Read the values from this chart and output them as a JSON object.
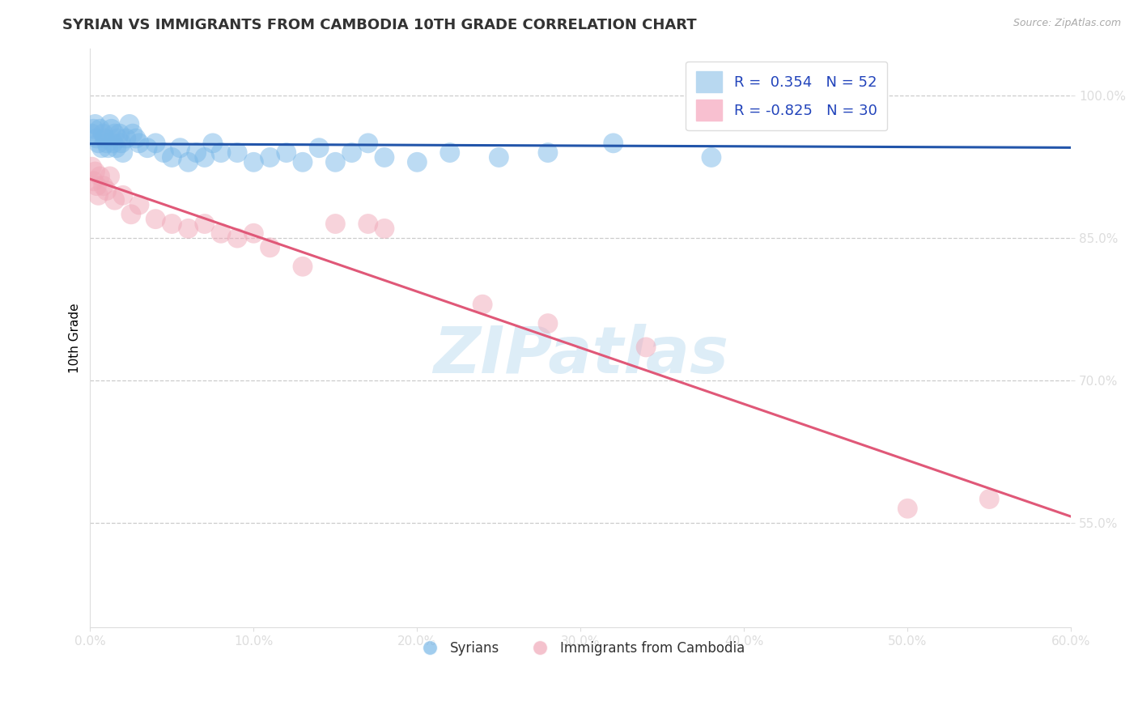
{
  "title": "SYRIAN VS IMMIGRANTS FROM CAMBODIA 10TH GRADE CORRELATION CHART",
  "source": "Source: ZipAtlas.com",
  "xlabel_vals": [
    0.0,
    10.0,
    20.0,
    30.0,
    40.0,
    50.0,
    60.0
  ],
  "ylabel": "10th Grade",
  "ylabel_vals": [
    55.0,
    70.0,
    85.0,
    100.0
  ],
  "xmin": 0.0,
  "xmax": 60.0,
  "ymin": 44.0,
  "ymax": 105.0,
  "blue_R": 0.354,
  "blue_N": 52,
  "pink_R": -0.825,
  "pink_N": 30,
  "blue_color": "#7ab8e8",
  "pink_color": "#f0a8b8",
  "blue_line_color": "#2255aa",
  "pink_line_color": "#e05878",
  "legend_label_blue": "Syrians",
  "legend_label_pink": "Immigrants from Cambodia",
  "blue_scatter_x": [
    0.1,
    0.2,
    0.3,
    0.4,
    0.5,
    0.6,
    0.7,
    0.8,
    0.9,
    1.0,
    1.1,
    1.2,
    1.3,
    1.4,
    1.5,
    1.6,
    1.7,
    1.8,
    1.9,
    2.0,
    2.2,
    2.4,
    2.6,
    2.8,
    3.0,
    3.5,
    4.0,
    4.5,
    5.0,
    5.5,
    6.0,
    6.5,
    7.0,
    7.5,
    8.0,
    9.0,
    10.0,
    11.0,
    12.0,
    13.0,
    14.0,
    15.0,
    16.0,
    17.0,
    18.0,
    20.0,
    22.0,
    25.0,
    28.0,
    32.0,
    38.0,
    45.0
  ],
  "blue_scatter_y": [
    96.0,
    96.5,
    97.0,
    95.5,
    95.0,
    96.5,
    94.5,
    96.0,
    95.5,
    95.0,
    94.5,
    97.0,
    96.5,
    95.0,
    96.0,
    94.5,
    95.5,
    96.0,
    95.0,
    94.0,
    95.5,
    97.0,
    96.0,
    95.5,
    95.0,
    94.5,
    95.0,
    94.0,
    93.5,
    94.5,
    93.0,
    94.0,
    93.5,
    95.0,
    94.0,
    94.0,
    93.0,
    93.5,
    94.0,
    93.0,
    94.5,
    93.0,
    94.0,
    95.0,
    93.5,
    93.0,
    94.0,
    93.5,
    94.0,
    95.0,
    93.5,
    101.5
  ],
  "pink_scatter_x": [
    0.1,
    0.2,
    0.3,
    0.4,
    0.5,
    0.6,
    0.8,
    1.0,
    1.2,
    1.5,
    2.0,
    2.5,
    3.0,
    4.0,
    5.0,
    6.0,
    7.0,
    8.0,
    9.0,
    10.0,
    11.0,
    13.0,
    15.0,
    17.0,
    18.0,
    24.0,
    28.0,
    34.0,
    50.0,
    55.0
  ],
  "pink_scatter_y": [
    92.5,
    91.0,
    92.0,
    90.5,
    89.5,
    91.5,
    90.5,
    90.0,
    91.5,
    89.0,
    89.5,
    87.5,
    88.5,
    87.0,
    86.5,
    86.0,
    86.5,
    85.5,
    85.0,
    85.5,
    84.0,
    82.0,
    86.5,
    86.5,
    86.0,
    78.0,
    76.0,
    73.5,
    56.5,
    57.5
  ]
}
